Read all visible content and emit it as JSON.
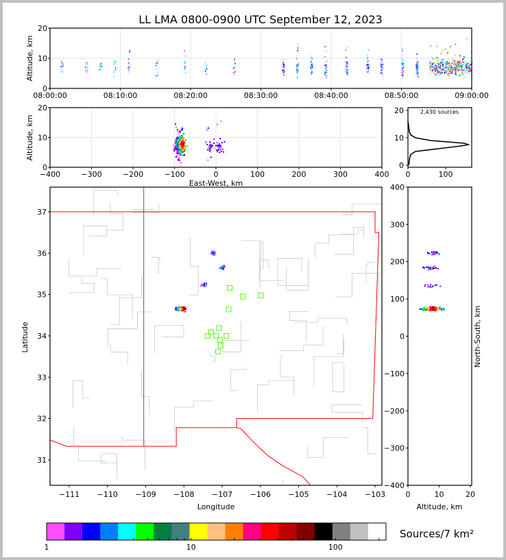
{
  "title": "LL LMA 0800-0900 UTC September 12, 2023",
  "chart_data": [
    {
      "type": "scatter",
      "panel": "time-altitude",
      "ylabel": "Altitude, km",
      "xlim": [
        "08:00:00",
        "09:00:00"
      ],
      "ylim": [
        0,
        20
      ],
      "xticks": [
        "08:00:00",
        "08:10:00",
        "08:20:00",
        "08:30:00",
        "08:40:00",
        "08:50:00",
        "09:00:00"
      ],
      "yticks": [
        "0",
        "10",
        "20"
      ],
      "grid": true,
      "burst_minutes": [
        1.5,
        5,
        7,
        9,
        11,
        15,
        19,
        22,
        26,
        33,
        35,
        37,
        39,
        42,
        45,
        47,
        50,
        52,
        54,
        55,
        56,
        57,
        58,
        59
      ]
    },
    {
      "type": "scatter",
      "panel": "east-west-altitude",
      "xlabel": "East-West, km",
      "ylabel": "Altitude, km",
      "xlim": [
        -400,
        400
      ],
      "ylim": [
        0,
        20
      ],
      "xticks": [
        "−400",
        "−300",
        "−200",
        "−100",
        "0",
        "100",
        "200",
        "300",
        "400"
      ],
      "yticks": [
        "0",
        "10",
        "20"
      ],
      "grid": true
    },
    {
      "type": "line",
      "panel": "altitude-histogram",
      "annotation": "2,430 sources",
      "xticks": [
        "0",
        "100"
      ],
      "yticks": [
        "0",
        "10",
        "20"
      ],
      "altitude_km": [
        0,
        1,
        2,
        3,
        4,
        5,
        6,
        7,
        7.5,
        8,
        9,
        10,
        11,
        12,
        13,
        14,
        15,
        16
      ],
      "counts": [
        2,
        3,
        4,
        5,
        8,
        20,
        80,
        140,
        160,
        150,
        60,
        20,
        8,
        4,
        3,
        2,
        1,
        0
      ]
    },
    {
      "type": "scatter",
      "panel": "plan-view-map",
      "xlabel": "Longitude",
      "ylabel": "Latitude",
      "xlim": [
        -111.5,
        -102.8
      ],
      "ylim": [
        30.4,
        37.6
      ],
      "xticks": [
        "−111",
        "−110",
        "−109",
        "−108",
        "−107",
        "−106",
        "−105",
        "−104",
        "−103"
      ],
      "yticks": [
        "31",
        "32",
        "33",
        "34",
        "35",
        "36",
        "37"
      ],
      "clusters": [
        {
          "lon": -108.1,
          "lat": 34.67,
          "sources": "dense"
        },
        {
          "lon": -107.25,
          "lat": 36.02,
          "sources": "sparse"
        },
        {
          "lon": -107.0,
          "lat": 35.68,
          "sources": "sparse"
        },
        {
          "lon": -107.5,
          "lat": 35.25,
          "sources": "sparse"
        }
      ],
      "stations": [
        [
          -106.8,
          35.16
        ],
        [
          -106.46,
          34.95
        ],
        [
          -105.99,
          34.98
        ],
        [
          -106.83,
          34.64
        ],
        [
          -107.08,
          34.19
        ],
        [
          -107.29,
          34.09
        ],
        [
          -107.38,
          34.0
        ],
        [
          -107.16,
          34.0
        ],
        [
          -106.89,
          34.0
        ],
        [
          -107.06,
          33.9
        ],
        [
          -107.04,
          33.77
        ],
        [
          -107.11,
          33.62
        ]
      ],
      "station_color": "#66ff33",
      "border_color": "#ff0000"
    },
    {
      "type": "scatter",
      "panel": "altitude-north-south",
      "xlabel": "Altitude, km",
      "ylabel": "North-South, km",
      "xlim": [
        0,
        20
      ],
      "ylim": [
        -400,
        400
      ],
      "xticks": [
        "0",
        "10",
        "20"
      ],
      "yticks": [
        "−400",
        "−300",
        "−200",
        "−100",
        "0",
        "100",
        "200",
        "300",
        "400"
      ]
    }
  ],
  "colorbar": {
    "label": "Sources/7 km²",
    "ticks": [
      "1",
      "10",
      "100"
    ],
    "colors": [
      "#ff4dff",
      "#8000ff",
      "#0000ff",
      "#0080ff",
      "#00ffff",
      "#00ff00",
      "#008040",
      "#408080",
      "#ffff00",
      "#ffc080",
      "#ff8000",
      "#ff0080",
      "#ff0000",
      "#c00000",
      "#800000",
      "#000000",
      "#808080",
      "#c0c0c0",
      "#ffffff"
    ]
  }
}
